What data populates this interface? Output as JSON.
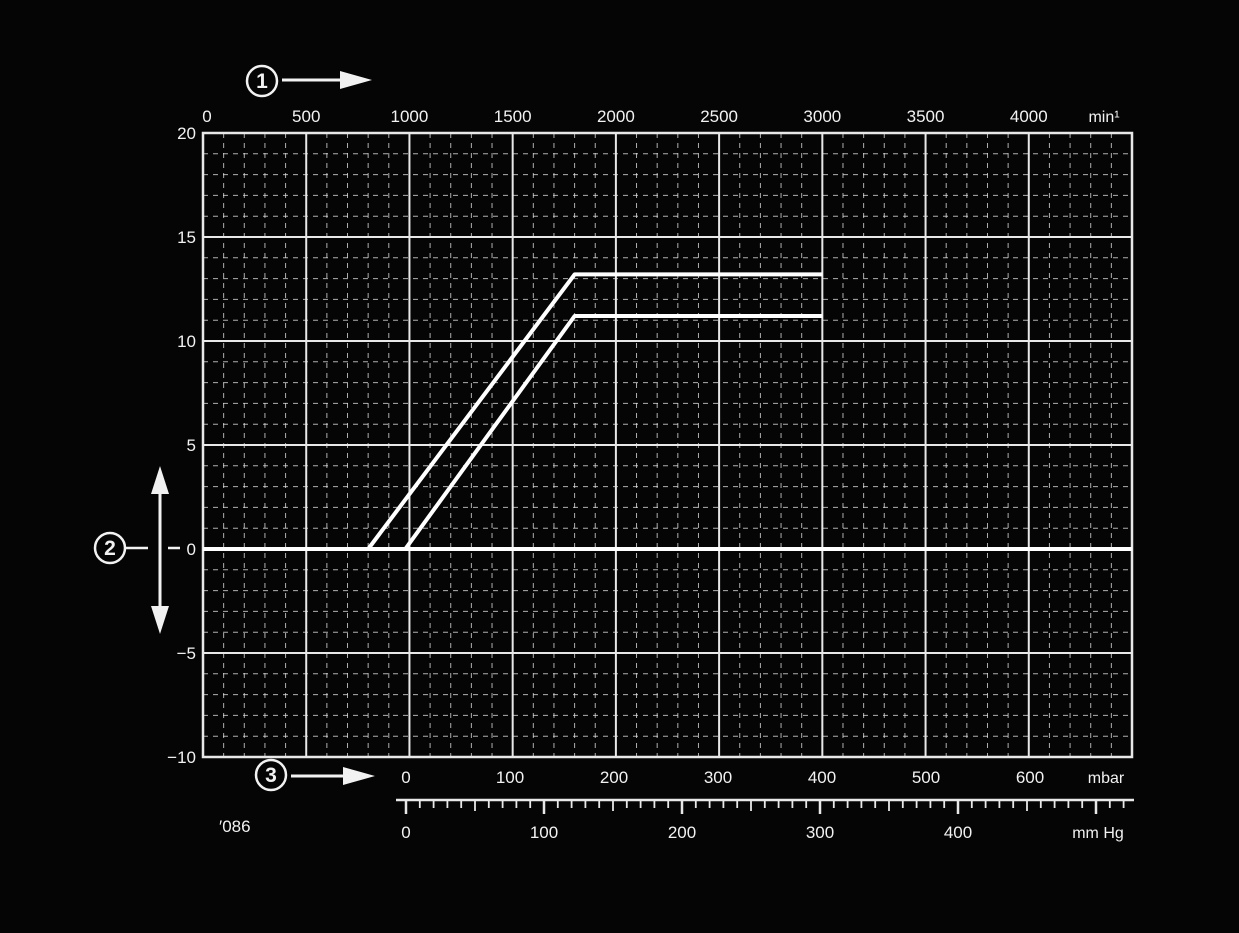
{
  "chart_data": {
    "type": "line",
    "top_axis": {
      "ticks": [
        "0",
        "500",
        "1000",
        "1500",
        "2000",
        "2500",
        "3000",
        "3500",
        "4000"
      ],
      "tick_values": [
        0,
        500,
        1000,
        1500,
        2000,
        2500,
        3000,
        3500,
        4000
      ],
      "unit": "min¹",
      "range": [
        0,
        4500
      ]
    },
    "left_axis": {
      "ticks": [
        "20",
        "15",
        "10",
        "5",
        "0",
        "−5",
        "−10"
      ],
      "tick_values": [
        20,
        15,
        10,
        5,
        0,
        -5,
        -10
      ],
      "range": [
        -10,
        20
      ]
    },
    "bottom_axis_mbar": {
      "ticks": [
        "0",
        "100",
        "200",
        "300",
        "400",
        "500",
        "600"
      ],
      "tick_values": [
        0,
        100,
        200,
        300,
        400,
        500,
        600
      ],
      "unit": "mbar"
    },
    "bottom_axis_mmhg": {
      "ticks": [
        "0",
        "100",
        "200",
        "300",
        "400"
      ],
      "tick_values": [
        0,
        100,
        200,
        300,
        400
      ],
      "unit": "mm Hg"
    },
    "series": [
      {
        "points": [
          [
            0,
            0
          ],
          [
            800,
            0
          ],
          [
            1800,
            13.2
          ],
          [
            3000,
            13.2
          ]
        ]
      },
      {
        "points": [
          [
            0,
            0
          ],
          [
            980,
            0
          ],
          [
            1800,
            11.2
          ],
          [
            3000,
            11.2
          ]
        ]
      },
      {
        "points": [
          [
            0,
            0
          ],
          [
            4500,
            0
          ]
        ]
      }
    ],
    "markers": [
      "①",
      "②",
      "③"
    ],
    "figure_code": "′086",
    "grid": true,
    "colors": {
      "background": "#050505",
      "grid": "#e8e8e8",
      "curve": "#ffffff",
      "text": "#f2f2f2"
    }
  }
}
